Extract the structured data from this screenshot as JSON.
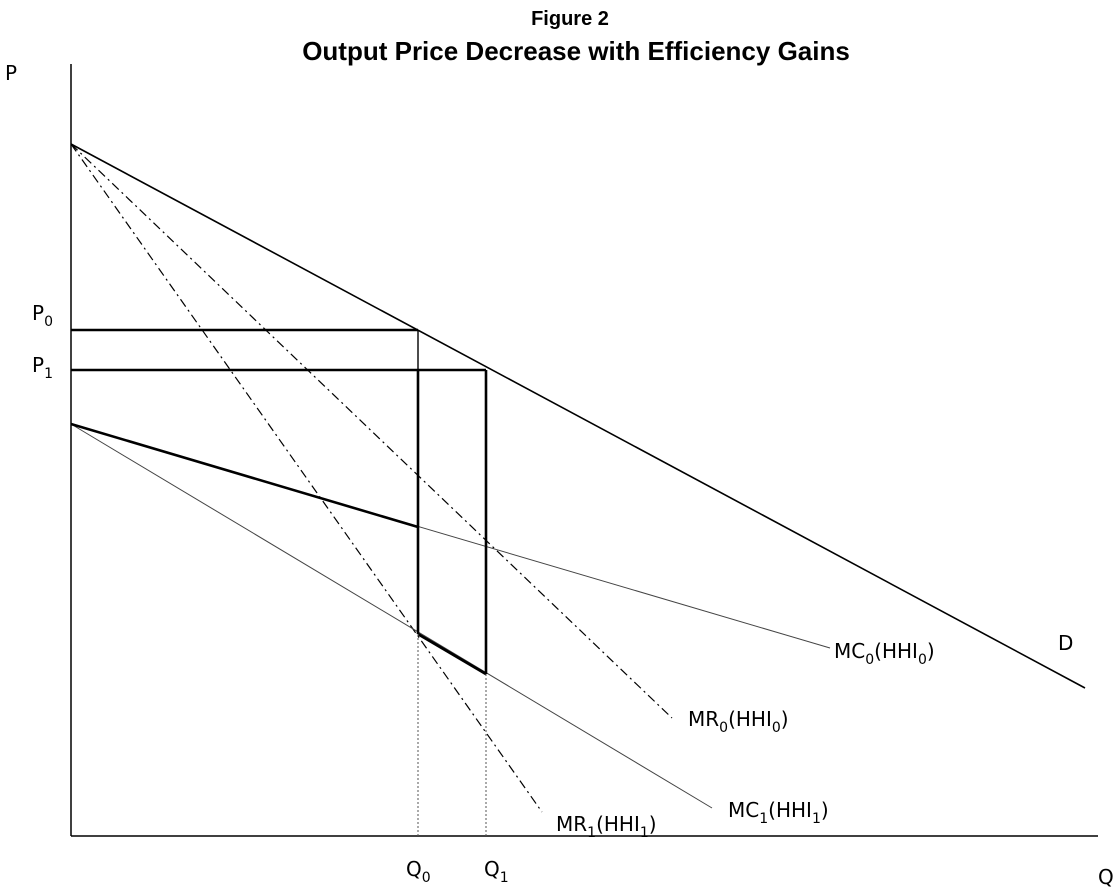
{
  "figure": {
    "number": "Figure 2",
    "title": "Output Price Decrease with Efficiency Gains"
  },
  "axes": {
    "y_label": "P",
    "x_label": "Q"
  },
  "levels": {
    "p0": {
      "main": "P",
      "sub": "0"
    },
    "p1": {
      "main": "P",
      "sub": "1"
    },
    "q0": {
      "main": "Q",
      "sub": "0"
    },
    "q1": {
      "main": "Q",
      "sub": "1"
    }
  },
  "curves": {
    "demand": {
      "label": "D"
    },
    "mc0": {
      "main": "MC",
      "sub": "0",
      "paren_open": "(HHI",
      "paren_sub": "0",
      "paren_close": ")"
    },
    "mr0": {
      "main": "MR",
      "sub": "0",
      "paren_open": "(HHI",
      "paren_sub": "0",
      "paren_close": ")"
    },
    "mc1": {
      "main": "MC",
      "sub": "1",
      "paren_open": "(HHI",
      "paren_sub": "1",
      "paren_close": ")"
    },
    "mr1": {
      "main": "MR",
      "sub": "1",
      "paren_open": "(HHI",
      "paren_sub": "1",
      "paren_close": ")"
    }
  }
}
